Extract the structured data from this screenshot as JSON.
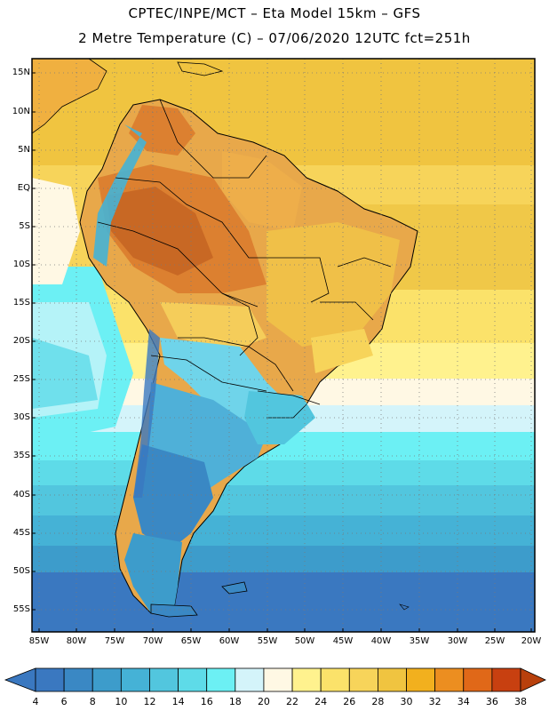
{
  "header": {
    "line1": "CPTEC/INPE/MCT –  Eta Model 15km – GFS",
    "line2": "2 Metre Temperature (C) – 07/06/2020 12UTC fct=251h"
  },
  "map": {
    "lat_labels": [
      "15N",
      "10N",
      "5N",
      "EQ",
      "5S",
      "10S",
      "15S",
      "20S",
      "25S",
      "30S",
      "35S",
      "40S",
      "45S",
      "50S",
      "55S"
    ],
    "lon_labels": [
      "85W",
      "80W",
      "75W",
      "70W",
      "65W",
      "60W",
      "55W",
      "50W",
      "45W",
      "40W",
      "35W",
      "30W",
      "25W",
      "20W"
    ]
  },
  "colorbar": {
    "values": [
      "4",
      "6",
      "8",
      "10",
      "12",
      "14",
      "16",
      "18",
      "20",
      "22",
      "24",
      "26",
      "28",
      "30",
      "32",
      "34",
      "36",
      "38"
    ],
    "colors": [
      "#3a78c0",
      "#3a88c4",
      "#3d9ccb",
      "#45b2d6",
      "#52c6de",
      "#5edbe8",
      "#6cf0f4",
      "#d4f4fa",
      "#fff8e4",
      "#fff28e",
      "#fbe26a",
      "#f7d45a",
      "#f0c440",
      "#f2b01e",
      "#ec8e20",
      "#e06818",
      "#c84010"
    ],
    "low_arrow_color": "#3a78c0",
    "high_arrow_color": "#b8400c"
  }
}
